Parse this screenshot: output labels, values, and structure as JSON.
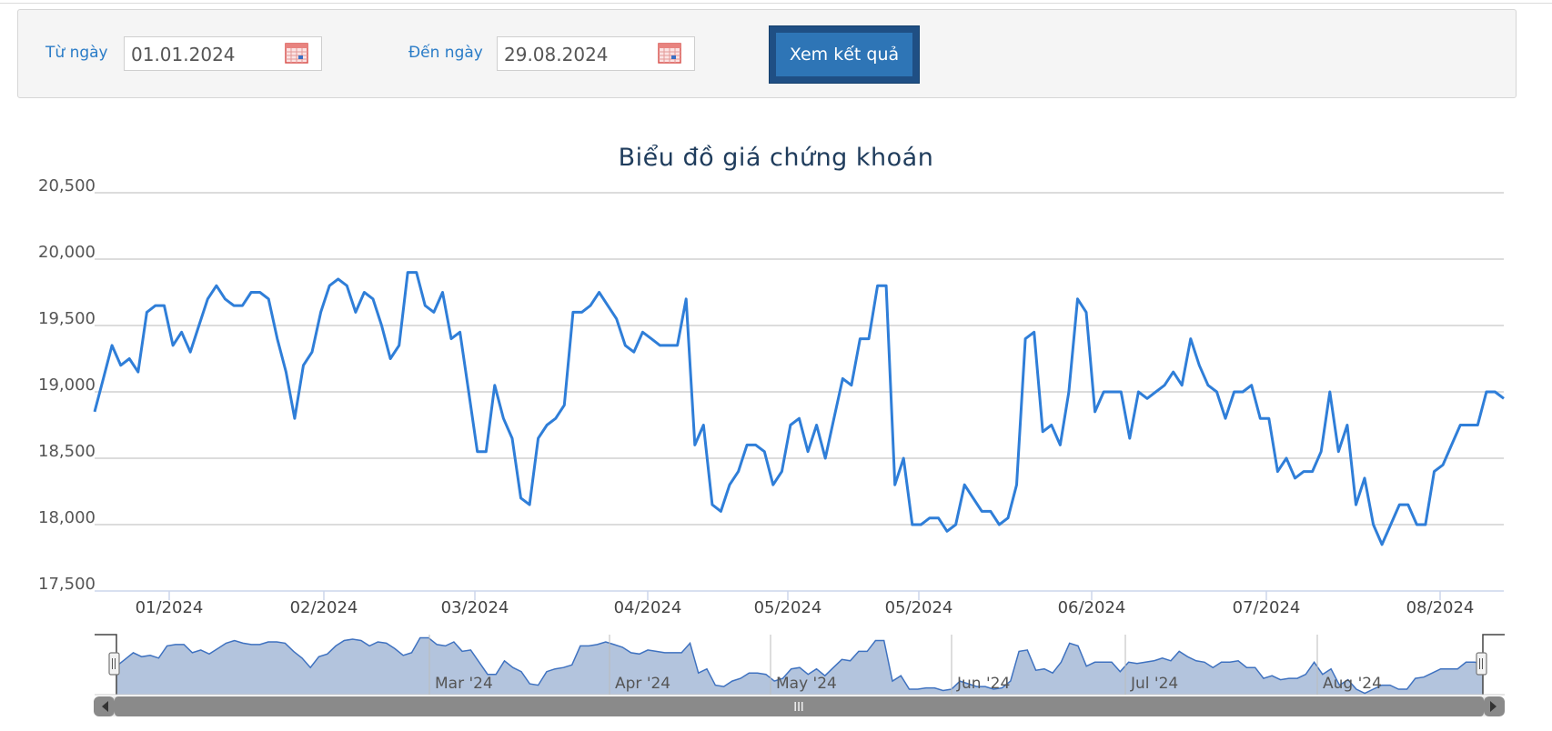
{
  "filter": {
    "from_label": "Từ ngày",
    "from_value": "01.01.2024",
    "to_label": "Đến ngày",
    "to_value": "29.08.2024",
    "submit_label": "Xem kết quả"
  },
  "colors": {
    "line": "#2f7ed8",
    "accent_button": "#2e75b6",
    "navigator_fill": "#b3c4dd"
  },
  "icons": {
    "calendar": "calendar-icon",
    "handle": "grip-handle-icon",
    "arrow_left": "arrow-left-icon",
    "arrow_right": "arrow-right-icon"
  },
  "navigator": {
    "labels": [
      "Mar '24",
      "Apr '24",
      "May '24",
      "Jun '24",
      "Jul '24",
      "Aug '24"
    ],
    "scrollbar_grip": "III"
  },
  "chart_data": {
    "type": "line",
    "title": "Biểu đồ giá chứng khoán",
    "ylim": [
      17500,
      20500
    ],
    "yticks": [
      "17,500",
      "18,000",
      "18,500",
      "19,000",
      "19,500",
      "20,000",
      "20,500"
    ],
    "ytick_values": [
      17500,
      18000,
      18500,
      19000,
      19500,
      20000,
      20500
    ],
    "xticks": [
      "01/2024",
      "02/2024",
      "03/2024",
      "04/2024",
      "05/2024",
      "05/2024",
      "06/2024",
      "07/2024",
      "08/2024"
    ],
    "grid": true,
    "legend": "none",
    "series": [
      {
        "values": [
          18850,
          19100,
          19350,
          19200,
          19250,
          19150,
          19600,
          19650,
          19650,
          19350,
          19450,
          19300,
          19500,
          19700,
          19800,
          19700,
          19650,
          19650,
          19750,
          19750,
          19700,
          19400,
          19150,
          18800,
          19200,
          19300,
          19600,
          19800,
          19850,
          19800,
          19600,
          19750,
          19700,
          19500,
          19250,
          19350,
          19900,
          19900,
          19650,
          19600,
          19750,
          19400,
          19450,
          19000,
          18550,
          18550,
          19050,
          18800,
          18650,
          18200,
          18150,
          18650,
          18750,
          18800,
          18900,
          19600,
          19600,
          19650,
          19750,
          19650,
          19550,
          19350,
          19300,
          19450,
          19400,
          19350,
          19350,
          19350,
          19700,
          18600,
          18750,
          18150,
          18100,
          18300,
          18400,
          18600,
          18600,
          18550,
          18300,
          18400,
          18750,
          18800,
          18550,
          18750,
          18500,
          18800,
          19100,
          19050,
          19400,
          19400,
          19800,
          19800,
          18300,
          18500,
          18000,
          18000,
          18050,
          18050,
          17950,
          18000,
          18300,
          18200,
          18100,
          18100,
          18000,
          18050,
          18300,
          19400,
          19450,
          18700,
          18750,
          18600,
          19000,
          19700,
          19600,
          18850,
          19000,
          19000,
          19000,
          18650,
          19000,
          18950,
          19000,
          19050,
          19150,
          19050,
          19400,
          19200,
          19050,
          19000,
          18800,
          19000,
          19000,
          19050,
          18800,
          18800,
          18400,
          18500,
          18350,
          18400,
          18400,
          18550,
          19000,
          18550,
          18750,
          18150,
          18350,
          18000,
          17850,
          18000,
          18150,
          18150,
          18000,
          18000,
          18400,
          18450,
          18600,
          18750,
          18750,
          18750,
          19000,
          19000,
          18950
        ]
      }
    ]
  }
}
